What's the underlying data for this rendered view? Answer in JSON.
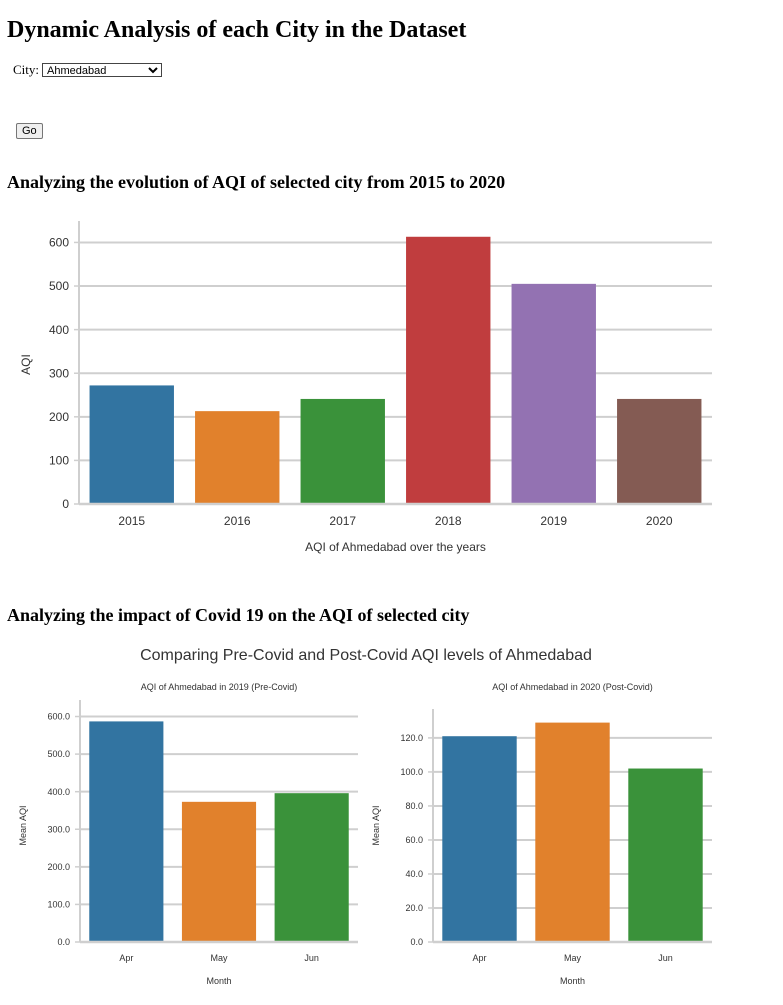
{
  "page": {
    "title": "Dynamic Analysis of each City in the Dataset",
    "city_label": "City:",
    "city_selected": "Ahmedabad",
    "go_label": "Go",
    "section1_heading": "Analyzing the evolution of AQI of selected city from 2015 to 2020",
    "section2_heading": "Analyzing the impact of Covid 19 on the AQI of selected city",
    "covid_suptitle": "Comparing Pre-Covid and Post-Covid AQI levels of Ahmedabad"
  },
  "colors": [
    "#3274a1",
    "#e1812c",
    "#3a923a",
    "#c03d3e",
    "#9372b2",
    "#845b53"
  ],
  "chart_data": [
    {
      "type": "bar",
      "title": "",
      "categories": [
        "2015",
        "2016",
        "2017",
        "2018",
        "2019",
        "2020"
      ],
      "values": [
        272,
        213,
        241,
        613,
        505,
        241
      ],
      "xlabel": "AQI of Ahmedabad over the years",
      "ylabel": "AQI",
      "ylim": [
        0,
        640
      ],
      "yticks": [
        0,
        100,
        200,
        300,
        400,
        500,
        600
      ],
      "ytick_labels": [
        "0",
        "100",
        "200",
        "300",
        "400",
        "500",
        "600"
      ],
      "grid": true
    },
    {
      "type": "bar",
      "title": "AQI of Ahmedabad in 2019 (Pre-Covid)",
      "categories": [
        "Apr",
        "May",
        "Jun"
      ],
      "values": [
        587,
        373,
        396
      ],
      "xlabel": "Month",
      "ylabel": "Mean AQI",
      "ylim": [
        0,
        620
      ],
      "yticks": [
        0,
        100,
        200,
        300,
        400,
        500,
        600
      ],
      "ytick_labels": [
        "0.0",
        "100.0",
        "200.0",
        "300.0",
        "400.0",
        "500.0",
        "600.0"
      ],
      "grid": true
    },
    {
      "type": "bar",
      "title": "AQI of Ahmedabad in 2020 (Post-Covid)",
      "categories": [
        "Apr",
        "May",
        "Jun"
      ],
      "values": [
        121,
        129,
        102
      ],
      "xlabel": "Month",
      "ylabel": "Mean AQI",
      "ylim": [
        0,
        137
      ],
      "yticks": [
        0,
        20,
        40,
        60,
        80,
        100,
        120
      ],
      "ytick_labels": [
        "0.0",
        "20.0",
        "40.0",
        "60.0",
        "80.0",
        "100.0",
        "120.0"
      ],
      "grid": true
    }
  ]
}
